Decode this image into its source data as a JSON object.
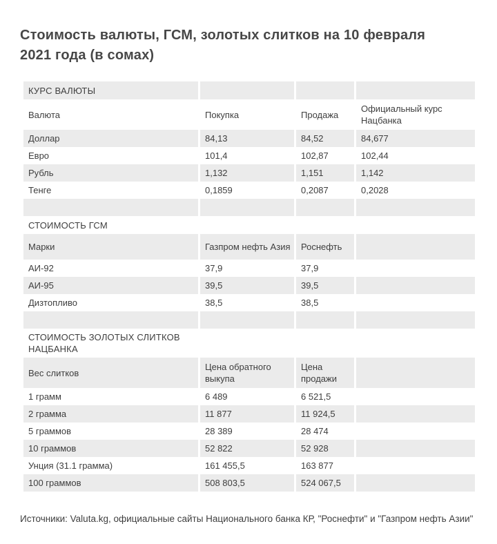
{
  "colors": {
    "row_stripe": "#ebebeb",
    "text": "#3e3e3e",
    "title_text": "#474747",
    "background": "#ffffff"
  },
  "title": "Стоимость валюты, ГСМ, золотых слитков на 10 февраля 2021 года (в сомах)",
  "table": {
    "rows": [
      {
        "type": "section",
        "cells": [
          "КУРС ВАЛЮТЫ",
          "",
          "",
          ""
        ]
      },
      {
        "type": "header",
        "cells": [
          "Валюта",
          "Покупка",
          "Продажа",
          "Официальный курс Нацбанка"
        ]
      },
      {
        "type": "data",
        "cells": [
          "Доллар",
          "84,13",
          "84,52",
          "84,677"
        ]
      },
      {
        "type": "data",
        "cells": [
          "Евро",
          "101,4",
          "102,87",
          "102,44"
        ]
      },
      {
        "type": "data",
        "cells": [
          "Рубль",
          "1,132",
          "1,151",
          "1,142"
        ]
      },
      {
        "type": "data",
        "cells": [
          "Тенге",
          "0,1859",
          "0,2087",
          "0,2028"
        ]
      },
      {
        "type": "spacer",
        "cells": [
          "",
          "",
          "",
          ""
        ]
      },
      {
        "type": "section",
        "cells": [
          "СТОИМОСТЬ ГСМ",
          "",
          "",
          ""
        ]
      },
      {
        "type": "header",
        "cells": [
          "Марки",
          "Газпром нефть Азия",
          "Роснефть",
          ""
        ]
      },
      {
        "type": "data",
        "cells": [
          "АИ-92",
          "37,9",
          "37,9",
          ""
        ]
      },
      {
        "type": "data",
        "cells": [
          "АИ-95",
          "39,5",
          "39,5",
          ""
        ]
      },
      {
        "type": "data",
        "cells": [
          "Дизтопливо",
          "38,5",
          "38,5",
          ""
        ]
      },
      {
        "type": "spacer",
        "cells": [
          "",
          "",
          "",
          ""
        ]
      },
      {
        "type": "section",
        "cells": [
          "СТОИМОСТЬ ЗОЛОТЫХ СЛИТКОВ НАЦБАНКА",
          "",
          "",
          ""
        ]
      },
      {
        "type": "header",
        "cells": [
          "Вес слитков",
          "Цена обратного выкупа",
          "Цена продажи",
          ""
        ]
      },
      {
        "type": "data",
        "cells": [
          "1 грамм",
          "6 489",
          "6 521,5",
          ""
        ]
      },
      {
        "type": "data",
        "cells": [
          "2 грамма",
          "11 877",
          "11 924,5",
          ""
        ]
      },
      {
        "type": "data",
        "cells": [
          "5 граммов",
          "28 389",
          "28 474",
          ""
        ]
      },
      {
        "type": "data",
        "cells": [
          "10 граммов",
          "52 822",
          "52 928",
          ""
        ]
      },
      {
        "type": "data",
        "cells": [
          "Унция (31.1 грамма)",
          "161 455,5",
          "163 877",
          ""
        ]
      },
      {
        "type": "data",
        "cells": [
          "100 граммов",
          "508 803,5",
          "524 067,5",
          ""
        ]
      }
    ]
  },
  "footer": {
    "source_note": "Источники: Valuta.kg, официальные сайты Национального банка КР, \"Роснефти\" и \"Газпром нефть Азии\""
  }
}
